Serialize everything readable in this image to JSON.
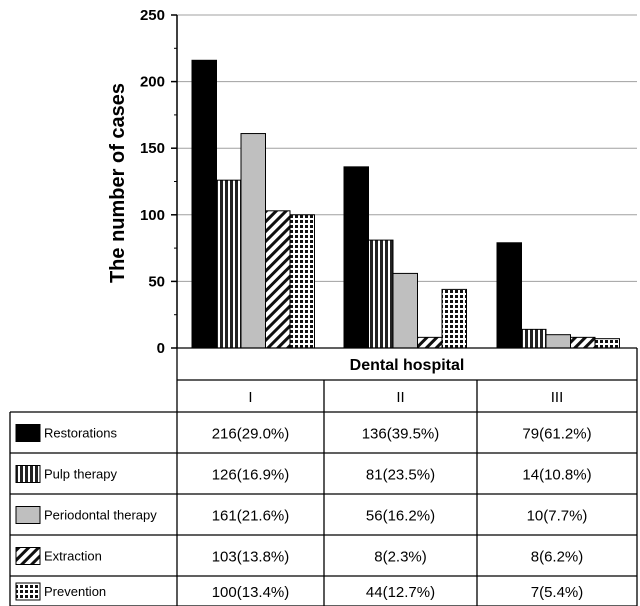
{
  "chart_data": {
    "type": "bar",
    "ylabel": "The number of cases",
    "xlabel": "Dental hospital",
    "ylim": [
      0,
      250
    ],
    "yticks": [
      0,
      50,
      100,
      150,
      200,
      250
    ],
    "grid": true,
    "categories": [
      "I",
      "II",
      "III"
    ],
    "series": [
      {
        "name": "Restorations",
        "values": [
          216,
          136,
          79
        ],
        "labels": [
          "216(29.0%)",
          "136(39.5%)",
          "79(61.2%)"
        ],
        "pattern": "solid-black"
      },
      {
        "name": "Pulp therapy",
        "values": [
          126,
          81,
          14
        ],
        "labels": [
          "126(16.9%)",
          "81(23.5%)",
          "14(10.8%)"
        ],
        "pattern": "vertical-stripes"
      },
      {
        "name": "Periodontal therapy",
        "values": [
          161,
          56,
          10
        ],
        "labels": [
          "161(21.6%)",
          "56(16.2%)",
          "10(7.7%)"
        ],
        "pattern": "solid-gray"
      },
      {
        "name": "Extraction",
        "values": [
          103,
          8,
          8
        ],
        "labels": [
          "103(13.8%)",
          "8(2.3%)",
          "8(6.2%)"
        ],
        "pattern": "diagonal-stripes"
      },
      {
        "name": "Prevention",
        "values": [
          100,
          44,
          7
        ],
        "labels": [
          "100(13.4%)",
          "44(12.7%)",
          "7(5.4%)"
        ],
        "pattern": "grid"
      }
    ],
    "colors": {
      "bar_border": "#000000",
      "gray_fill": "#bfbfbf",
      "gridline": "#a0a0a0"
    }
  }
}
